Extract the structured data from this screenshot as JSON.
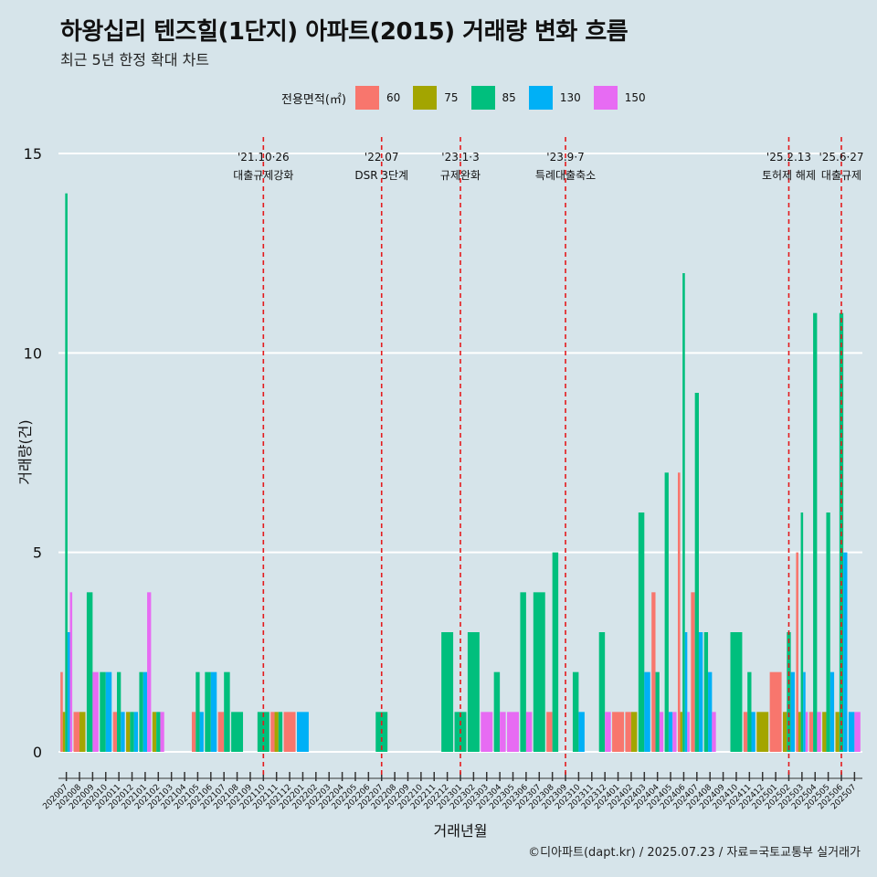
{
  "title": "하왕십리 텐즈힐(1단지) 아파트(2015) 거래량 변화 흐름",
  "subtitle": "최근 5년 한정 확대 차트",
  "caption": "©디아파트(dapt.kr) / 2025.07.23 / 자료=국토교통부 실거래가",
  "legend": {
    "title": "전용면적(㎡)",
    "items": [
      {
        "label": "60",
        "color": "#f8766d"
      },
      {
        "label": "75",
        "color": "#a3a500"
      },
      {
        "label": "85",
        "color": "#00bf7d"
      },
      {
        "label": "130",
        "color": "#00b0f6"
      },
      {
        "label": "150",
        "color": "#e76bf3"
      }
    ]
  },
  "chart_data": {
    "type": "bar",
    "xlabel": "거래년월",
    "ylabel": "거래량(건)",
    "ylim": [
      0,
      15
    ],
    "yticks": [
      0,
      5,
      10,
      15
    ],
    "grid": true,
    "legend_position": "top",
    "categories": [
      "202007",
      "202008",
      "202009",
      "202010",
      "202011",
      "202012",
      "202101",
      "202102",
      "202103",
      "202104",
      "202105",
      "202106",
      "202107",
      "202108",
      "202109",
      "202110",
      "202111",
      "202112",
      "202201",
      "202202",
      "202203",
      "202204",
      "202205",
      "202206",
      "202207",
      "202208",
      "202209",
      "202210",
      "202211",
      "202212",
      "202301",
      "202302",
      "202303",
      "202304",
      "202305",
      "202306",
      "202307",
      "202308",
      "202309",
      "202310",
      "202311",
      "202312",
      "202401",
      "202402",
      "202403",
      "202404",
      "202405",
      "202406",
      "202407",
      "202408",
      "202409",
      "202410",
      "202411",
      "202412",
      "202501",
      "202502",
      "202503",
      "202504",
      "202505",
      "202506",
      "202507"
    ],
    "series": [
      {
        "name": "60",
        "values": [
          2,
          1,
          0,
          0,
          1,
          0,
          0,
          0,
          0,
          0,
          1,
          0,
          1,
          0,
          0,
          0,
          1,
          1,
          0,
          0,
          0,
          0,
          0,
          0,
          0,
          0,
          0,
          0,
          0,
          0,
          0,
          0,
          0,
          0,
          0,
          0,
          0,
          1,
          0,
          0,
          0,
          0,
          1,
          1,
          0,
          4,
          0,
          7,
          4,
          0,
          0,
          0,
          1,
          0,
          2,
          0,
          5,
          1,
          0,
          0,
          0
        ]
      },
      {
        "name": "75",
        "values": [
          1,
          1,
          0,
          0,
          0,
          1,
          0,
          1,
          0,
          0,
          0,
          0,
          0,
          0,
          0,
          0,
          1,
          0,
          0,
          0,
          0,
          0,
          0,
          0,
          0,
          0,
          0,
          0,
          0,
          0,
          0,
          0,
          0,
          0,
          0,
          0,
          0,
          0,
          0,
          0,
          0,
          0,
          0,
          1,
          0,
          0,
          0,
          1,
          0,
          0,
          0,
          0,
          0,
          1,
          0,
          1,
          1,
          0,
          1,
          1,
          0
        ]
      },
      {
        "name": "85",
        "values": [
          14,
          0,
          4,
          2,
          2,
          1,
          2,
          1,
          0,
          0,
          2,
          2,
          2,
          1,
          0,
          1,
          1,
          0,
          0,
          0,
          0,
          0,
          0,
          0,
          1,
          0,
          0,
          0,
          0,
          3,
          1,
          3,
          0,
          2,
          0,
          4,
          4,
          5,
          0,
          2,
          0,
          3,
          0,
          0,
          6,
          2,
          7,
          12,
          9,
          3,
          0,
          3,
          2,
          0,
          0,
          3,
          6,
          11,
          6,
          11,
          0
        ]
      },
      {
        "name": "130",
        "values": [
          3,
          0,
          0,
          2,
          1,
          1,
          2,
          0,
          0,
          0,
          1,
          2,
          0,
          0,
          0,
          0,
          0,
          0,
          1,
          0,
          0,
          0,
          0,
          0,
          0,
          0,
          0,
          0,
          0,
          0,
          0,
          0,
          0,
          0,
          0,
          0,
          0,
          0,
          0,
          1,
          0,
          0,
          0,
          0,
          2,
          0,
          1,
          3,
          3,
          2,
          0,
          0,
          1,
          0,
          0,
          2,
          2,
          0,
          2,
          5,
          1
        ]
      },
      {
        "name": "150",
        "values": [
          4,
          0,
          2,
          0,
          0,
          0,
          4,
          1,
          0,
          0,
          0,
          0,
          0,
          0,
          0,
          0,
          0,
          0,
          0,
          0,
          0,
          0,
          0,
          0,
          0,
          0,
          0,
          0,
          0,
          0,
          0,
          0,
          1,
          1,
          1,
          1,
          0,
          0,
          0,
          0,
          0,
          1,
          0,
          0,
          0,
          1,
          1,
          1,
          0,
          1,
          0,
          0,
          0,
          0,
          0,
          0,
          1,
          1,
          0,
          0,
          1
        ]
      }
    ],
    "annotations": [
      {
        "x": "202110",
        "date": "'21.10·26",
        "label": "대출규제강화"
      },
      {
        "x": "202207",
        "date": "'22.07",
        "label": "DSR 3단계"
      },
      {
        "x": "202301",
        "date": "'23.1·3",
        "label": "규제완화"
      },
      {
        "x": "202309",
        "date": "'23.9·7",
        "label": "특례대출축소"
      },
      {
        "x": "202502",
        "date": "'25.2.13",
        "label": "토허제 해제"
      },
      {
        "x": "202506",
        "date": "'25.6·27",
        "label": "대출규제"
      }
    ]
  }
}
